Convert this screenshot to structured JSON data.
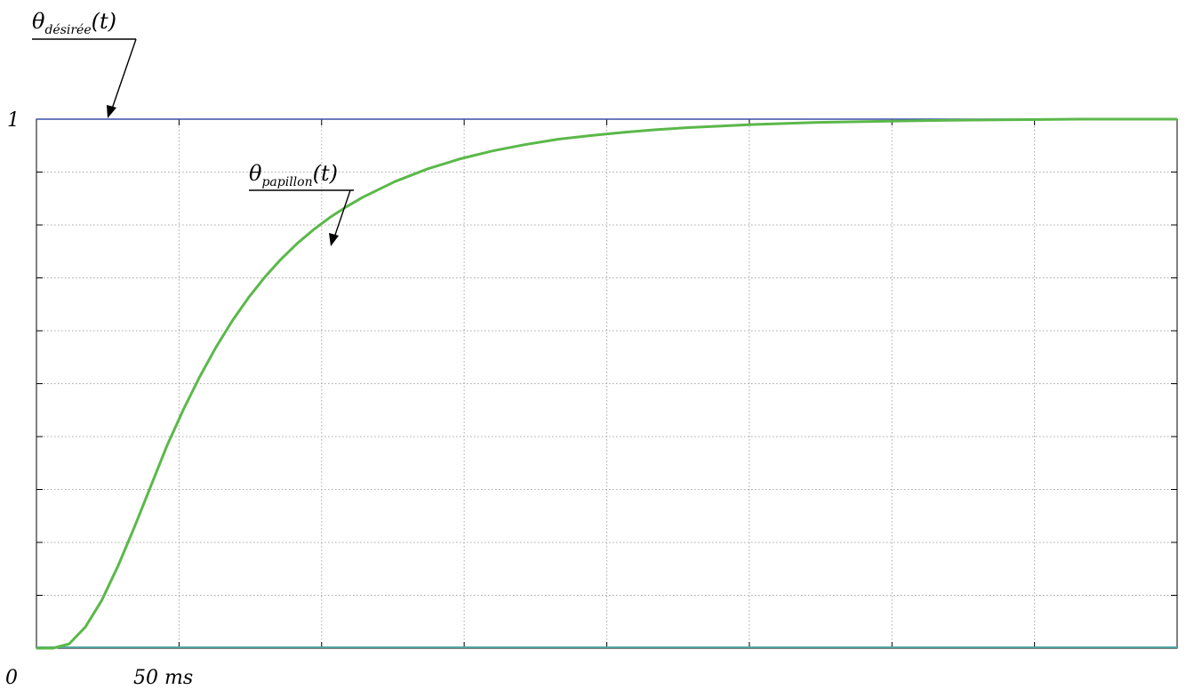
{
  "chart_data": {
    "type": "line",
    "xlabel": "",
    "ylabel": "",
    "xlim": [
      0,
      350
    ],
    "ylim": [
      0,
      1
    ],
    "grid": true,
    "x_tick_labels": [
      {
        "x": 0,
        "text": "0"
      },
      {
        "x": 50,
        "text": "50 ms"
      }
    ],
    "y_tick_labels": [
      {
        "y": 1,
        "text": "1"
      }
    ],
    "series": [
      {
        "color": "#3b4ea8",
        "x": [
          0,
          5,
          350
        ],
        "y": [
          0,
          1,
          1
        ]
      },
      {
        "color": "#5bb84a",
        "x": [
          0,
          5,
          10,
          15,
          20,
          25,
          30,
          35,
          40,
          45,
          50,
          55,
          60,
          65,
          70,
          75,
          80,
          85,
          90,
          95,
          100,
          110,
          120,
          130,
          140,
          150,
          160,
          170,
          180,
          190,
          200,
          220,
          240,
          260,
          280,
          300,
          320,
          350
        ],
        "y": [
          0,
          0.0,
          0.008,
          0.04,
          0.09,
          0.155,
          0.228,
          0.305,
          0.382,
          0.45,
          0.512,
          0.568,
          0.618,
          0.662,
          0.701,
          0.735,
          0.765,
          0.791,
          0.814,
          0.834,
          0.852,
          0.882,
          0.906,
          0.925,
          0.94,
          0.952,
          0.962,
          0.969,
          0.975,
          0.98,
          0.984,
          0.99,
          0.994,
          0.996,
          0.998,
          0.999,
          1.0,
          1.0
        ]
      }
    ],
    "annotations": [
      {
        "symbol": "θ",
        "subscript": "désirée",
        "suffix": "(t)"
      },
      {
        "symbol": "θ",
        "subscript": "papillon",
        "suffix": "(t)"
      }
    ]
  }
}
